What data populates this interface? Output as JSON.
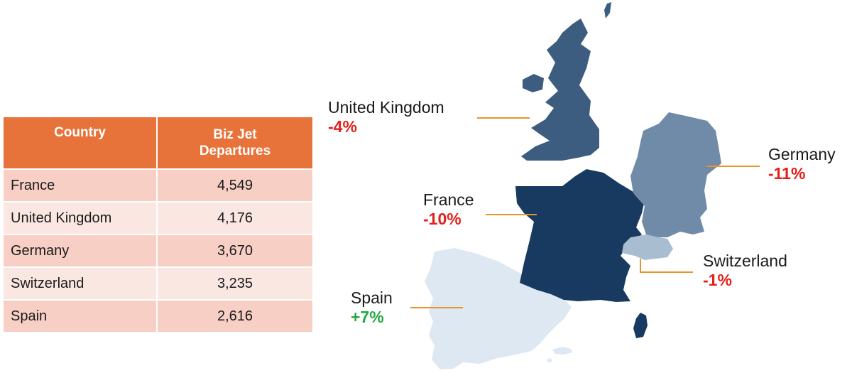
{
  "table": {
    "headers": [
      "Country",
      "Biz Jet",
      "Departures"
    ],
    "rows": [
      {
        "country": "France",
        "departures": "4,549"
      },
      {
        "country": "United Kingdom",
        "departures": "4,176"
      },
      {
        "country": "Germany",
        "departures": "3,670"
      },
      {
        "country": "Switzerland",
        "departures": "3,235"
      },
      {
        "country": "Spain",
        "departures": "2,616"
      }
    ]
  },
  "map": {
    "regions": [
      {
        "name": "United Kingdom",
        "change": "-4%",
        "trend": "negative",
        "fill": "#3d5d80"
      },
      {
        "name": "Germany",
        "change": "-11%",
        "trend": "negative",
        "fill": "#6f8ba7"
      },
      {
        "name": "France",
        "change": "-10%",
        "trend": "negative",
        "fill": "#183a60"
      },
      {
        "name": "Switzerland",
        "change": "-1%",
        "trend": "negative",
        "fill": "#a9bdd1"
      },
      {
        "name": "Spain",
        "change": "+7%",
        "trend": "positive",
        "fill": "#dde8f3"
      }
    ],
    "colors": {
      "leader_line": "#e8952a",
      "negative": "#e3201b",
      "positive": "#25a844",
      "header": "#e8733a"
    }
  }
}
